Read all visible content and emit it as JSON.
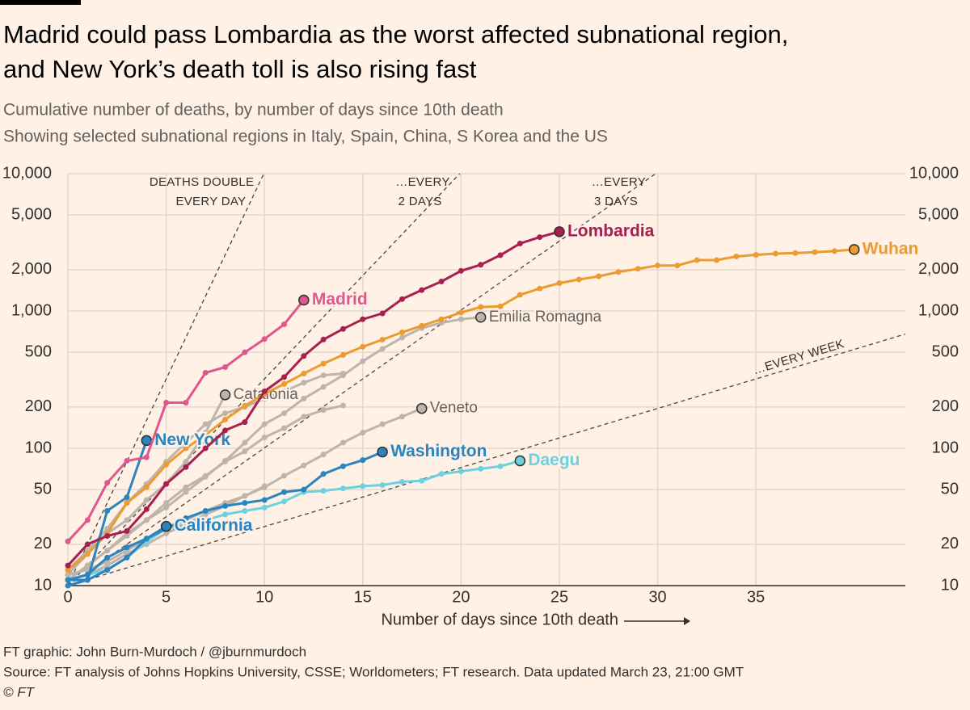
{
  "chart_data": {
    "type": "line",
    "title": [
      "Madrid could pass Lombardia as the worst affected subnational region,",
      "and New York’s death toll is also rising fast"
    ],
    "subtitle": [
      "Cumulative number of deaths, by number of days since 10th death",
      "Showing selected subnational regions in Italy, Spain, China, S Korea and the US"
    ],
    "x_label": "Number of days since 10th death",
    "footer": [
      "FT graphic: John Burn-Murdoch / @jburnmurdoch",
      "Source: FT analysis of Johns Hopkins University, CSSE; Worldometers; FT research. Data updated March 23, 21:00 GMT",
      "© FT"
    ],
    "log_y": true,
    "grid": true,
    "xlim": [
      0,
      42.6
    ],
    "xticks": [
      0,
      5,
      10,
      15,
      20,
      25,
      30,
      35
    ],
    "ylim": [
      10,
      10000
    ],
    "yticks": [
      10,
      20,
      50,
      100,
      200,
      500,
      {
        "value": 1000,
        "label": "1,000"
      },
      {
        "value": 2000,
        "label": "2,000"
      },
      {
        "value": 5000,
        "label": "5,000"
      },
      {
        "value": 10000,
        "label": "10,000"
      }
    ],
    "reference_lines": [
      {
        "label": [
          "DEATHS DOUBLE",
          "EVERY DAY"
        ],
        "doubling_days": 1
      },
      {
        "label": [
          "…EVERY",
          "2 DAYS"
        ],
        "doubling_days": 2
      },
      {
        "label": [
          "…EVERY",
          "3 DAYS"
        ],
        "doubling_days": 3
      },
      {
        "label": [
          "…EVERY WEEK"
        ],
        "doubling_days": 7
      }
    ],
    "x": [
      0,
      1,
      2,
      3,
      4,
      5,
      6,
      7,
      8,
      9,
      10,
      11,
      12,
      13,
      14,
      15,
      16,
      17,
      18,
      19,
      20,
      21,
      22,
      23,
      24,
      25,
      26,
      27,
      28,
      29,
      30,
      31,
      32,
      33,
      34,
      35,
      36,
      37,
      38,
      39,
      40
    ],
    "series": [
      {
        "color": "#bdb4ab",
        "values": [
          13,
          18,
          26,
          40,
          55,
          80,
          110,
          150,
          180,
          200,
          230,
          260,
          300,
          340,
          350,
          null,
          null,
          null,
          null,
          null,
          null,
          null,
          null,
          null,
          null,
          null,
          null,
          null,
          null,
          null,
          null,
          null,
          null,
          null,
          null,
          null,
          null,
          null,
          null,
          null,
          null
        ]
      },
      {
        "color": "#bdb4ab",
        "values": [
          11,
          14,
          18,
          24,
          30,
          40,
          52,
          63,
          80,
          95,
          120,
          140,
          170,
          190,
          205,
          null,
          null,
          null,
          null,
          null,
          null,
          null,
          null,
          null,
          null,
          null,
          null,
          null,
          null,
          null,
          null,
          null,
          null,
          null,
          null,
          null,
          null,
          null,
          null,
          null,
          null
        ]
      },
      {
        "color": "#bdb4ab",
        "values": [
          12,
          13,
          15,
          18,
          22,
          26,
          30,
          35,
          40,
          45,
          53,
          null,
          null,
          null,
          null,
          null,
          null,
          null,
          null,
          null,
          null,
          null,
          null,
          null,
          null,
          null,
          null,
          null,
          null,
          null,
          null,
          null,
          null,
          null,
          null,
          null,
          null,
          null,
          null,
          null,
          null
        ]
      },
      {
        "name": "Emilia Romagna",
        "color": "#bdb4ab",
        "highlight": false,
        "values": [
          11,
          14,
          18,
          23,
          30,
          37,
          48,
          62,
          81,
          110,
          150,
          180,
          230,
          280,
          340,
          430,
          530,
          640,
          750,
          820,
          870,
          900,
          null,
          null,
          null,
          null,
          null,
          null,
          null,
          null,
          null,
          null,
          null,
          null,
          null,
          null,
          null,
          null,
          null,
          null,
          null
        ]
      },
      {
        "name": "Catalonia",
        "color": "#bdb4ab",
        "highlight": false,
        "values": [
          12,
          17,
          24,
          30,
          42,
          55,
          80,
          130,
          245,
          null,
          null,
          null,
          null,
          null,
          null,
          null,
          null,
          null,
          null,
          null,
          null,
          null,
          null,
          null,
          null,
          null,
          null,
          null,
          null,
          null,
          null,
          null,
          null,
          null,
          null,
          null,
          null,
          null,
          null,
          null,
          null
        ]
      },
      {
        "name": "Veneto",
        "color": "#bdb4ab",
        "highlight": false,
        "values": [
          11,
          12,
          14,
          17,
          20,
          24,
          28,
          33,
          38,
          45,
          52,
          63,
          75,
          90,
          110,
          130,
          150,
          170,
          195,
          null,
          null,
          null,
          null,
          null,
          null,
          null,
          null,
          null,
          null,
          null,
          null,
          null,
          null,
          null,
          null,
          null,
          null,
          null,
          null,
          null,
          null
        ]
      },
      {
        "name": "Wuhan",
        "color": "#eb9b2f",
        "highlight": true,
        "values": [
          13,
          17,
          24,
          40,
          52,
          76,
          100,
          125,
          162,
          204,
          249,
          294,
          350,
          414,
          479,
          549,
          618,
          699,
          780,
          871,
          974,
          1068,
          1080,
          1310,
          1457,
          1596,
          1696,
          1789,
          1921,
          2029,
          2144,
          2144,
          2346,
          2346,
          2495,
          2563,
          2615,
          2641,
          2682,
          2727,
          2803
        ]
      },
      {
        "name": "Daegu",
        "color": "#6fd0df",
        "highlight": true,
        "values": [
          11,
          12,
          13,
          16,
          21,
          26,
          28,
          30,
          33,
          35,
          37,
          41,
          48,
          49,
          51,
          53,
          54,
          57,
          58,
          65,
          68,
          71,
          74,
          81,
          null,
          null,
          null,
          null,
          null,
          null,
          null,
          null,
          null,
          null,
          null,
          null,
          null,
          null,
          null,
          null,
          null
        ]
      },
      {
        "name": "Washington",
        "color": "#2a84c0",
        "highlight": true,
        "values": [
          10,
          11,
          13,
          16,
          22,
          26,
          31,
          35,
          38,
          40,
          42,
          48,
          50,
          65,
          74,
          82,
          94,
          null,
          null,
          null,
          null,
          null,
          null,
          null,
          null,
          null,
          null,
          null,
          null,
          null,
          null,
          null,
          null,
          null,
          null,
          null,
          null,
          null,
          null,
          null,
          null
        ]
      },
      {
        "name": "California",
        "color": "#2a84c0",
        "highlight": true,
        "values": [
          11,
          12,
          16,
          19,
          22,
          27,
          null,
          null,
          null,
          null,
          null,
          null,
          null,
          null,
          null,
          null,
          null,
          null,
          null,
          null,
          null,
          null,
          null,
          null,
          null,
          null,
          null,
          null,
          null,
          null,
          null,
          null,
          null,
          null,
          null,
          null,
          null,
          null,
          null,
          null,
          null
        ]
      },
      {
        "name": "New York",
        "color": "#2a84c0",
        "highlight": true,
        "values": [
          11,
          11,
          35,
          44,
          114,
          null,
          null,
          null,
          null,
          null,
          null,
          null,
          null,
          null,
          null,
          null,
          null,
          null,
          null,
          null,
          null,
          null,
          null,
          null,
          null,
          null,
          null,
          null,
          null,
          null,
          null,
          null,
          null,
          null,
          null,
          null,
          null,
          null,
          null,
          null,
          null
        ]
      },
      {
        "name": "Lombardia",
        "color": "#a8204f",
        "highlight": true,
        "values": [
          14,
          20,
          23,
          25,
          36,
          55,
          73,
          100,
          135,
          155,
          260,
          330,
          470,
          620,
          740,
          870,
          960,
          1220,
          1420,
          1640,
          1960,
          2170,
          2550,
          3100,
          3450,
          3780,
          null,
          null,
          null,
          null,
          null,
          null,
          null,
          null,
          null,
          null,
          null,
          null,
          null,
          null,
          null
        ]
      },
      {
        "name": "Madrid",
        "color": "#e0578f",
        "highlight": true,
        "values": [
          21,
          30,
          56,
          81,
          86,
          215,
          215,
          355,
          390,
          500,
          625,
          800,
          1200,
          null,
          null,
          null,
          null,
          null,
          null,
          null,
          null,
          null,
          null,
          null,
          null,
          null,
          null,
          null,
          null,
          null,
          null,
          null,
          null,
          null,
          null,
          null,
          null,
          null,
          null,
          null,
          null
        ]
      }
    ]
  }
}
